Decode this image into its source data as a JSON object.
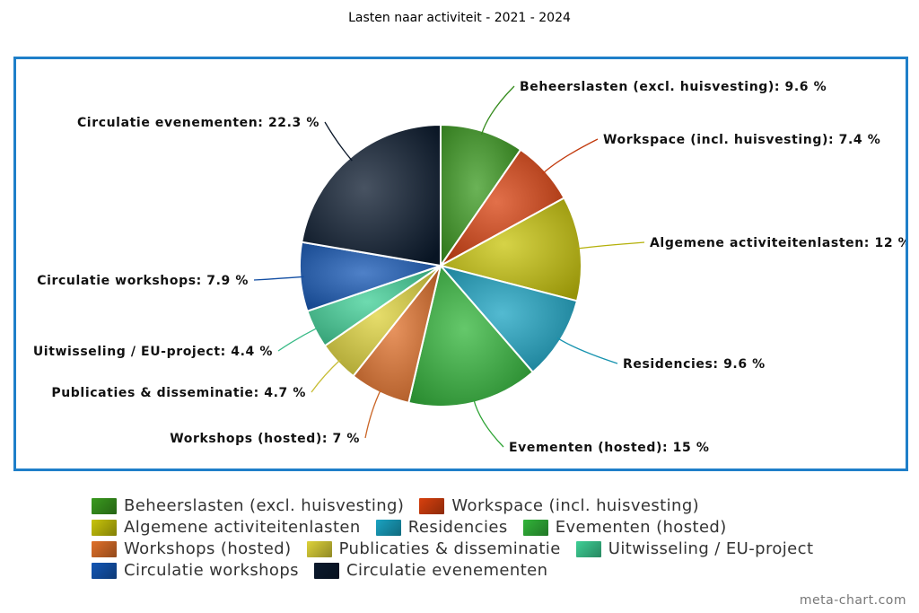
{
  "title": "Lasten naar activiteit - 2021 - 2024",
  "watermark": "meta-chart.com",
  "chart_data": {
    "type": "pie",
    "title": "Lasten naar activiteit - 2021 - 2024",
    "legend_position": "bottom",
    "unit": "%",
    "slices": [
      {
        "name": "Beheerslasten (excl. huisvesting)",
        "value": 9.6,
        "label": "Beheerslasten (excl. huisvesting): 9.6 %",
        "color": "#3a9a1f"
      },
      {
        "name": "Workspace (incl. huisvesting)",
        "value": 7.4,
        "label": "Workspace (incl. huisvesting): 7.4 %",
        "color": "#d8400e"
      },
      {
        "name": "Algemene activiteitenlasten",
        "value": 12,
        "label": "Algemene activiteitenlasten: 12 %",
        "color": "#c8c40a"
      },
      {
        "name": "Residencies",
        "value": 9.6,
        "label": "Residencies: 9.6 %",
        "color": "#1aa3c2"
      },
      {
        "name": "Evementen (hosted)",
        "value": 15,
        "label": "Evementen (hosted): 15 %",
        "color": "#32b53a"
      },
      {
        "name": "Workshops (hosted)",
        "value": 7,
        "label": "Workshops (hosted): 7 %",
        "color": "#e0702a"
      },
      {
        "name": "Publicaties & disseminatie",
        "value": 4.7,
        "label": "Publicaties & disseminatie: 4.7 %",
        "color": "#ddd23a"
      },
      {
        "name": "Uitwisseling / EU-project",
        "value": 4.4,
        "label": "Uitwisseling / EU-project: 4.4 %",
        "color": "#3ecf95"
      },
      {
        "name": "Circulatie workshops",
        "value": 7.9,
        "label": "Circulatie workshops: 7.9 %",
        "color": "#1457b5"
      },
      {
        "name": "Circulatie evenementen",
        "value": 22.3,
        "label": "Circulatie evenementen: 22.3 %",
        "color": "#0b1a2e"
      }
    ]
  }
}
